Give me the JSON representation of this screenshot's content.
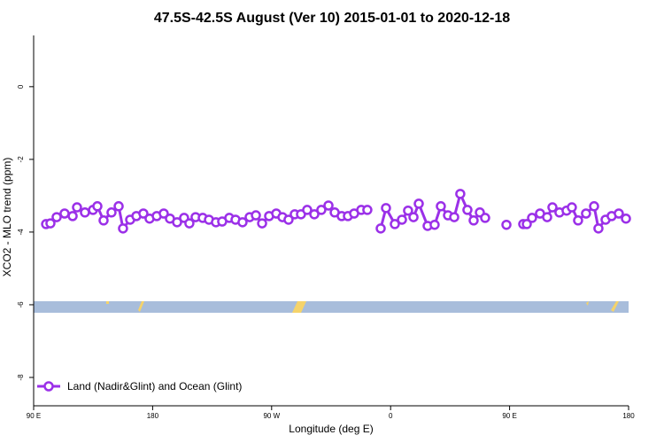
{
  "chart_data": {
    "type": "line",
    "title": "47.5S-42.5S August (Ver 10)   2015-01-01 to 2020-12-18",
    "x_label": "Longitude (deg E)",
    "y_label": "XCO2 - MLO trend (ppm)",
    "xlim": [
      90,
      540
    ],
    "ylim": [
      -8.78,
      1.41
    ],
    "xticks": [
      {
        "value": 90,
        "label": "90 E"
      },
      {
        "value": 180,
        "label": "180"
      },
      {
        "value": 270,
        "label": "90 W"
      },
      {
        "value": 360,
        "label": "0"
      },
      {
        "value": 450,
        "label": "90 E"
      },
      {
        "value": 540,
        "label": "180"
      }
    ],
    "yticks": [
      0,
      -2,
      -4,
      -6,
      -8
    ],
    "legend": "bottom-left",
    "x": [
      99.4,
      102.7,
      107.4,
      113.4,
      119.5,
      122.8,
      128.8,
      134.9,
      138.2,
      142.9,
      148.9,
      154.3,
      157.6,
      163.0,
      167.7,
      173.0,
      177.7,
      183.1,
      188.4,
      193.1,
      198.5,
      203.8,
      207.8,
      212.5,
      217.9,
      222.6,
      227.9,
      232.6,
      238.0,
      242.7,
      248.0,
      253.4,
      258.1,
      262.8,
      268.1,
      273.5,
      278.2,
      282.8,
      287.5,
      292.2,
      296.9,
      302.3,
      307.6,
      313.0,
      317.7,
      323.0,
      327.7,
      332.4,
      337.8,
      342.4,
      347.1,
      352.5,
      356.5,
      363.2,
      368.6,
      373.2,
      377.3,
      381.3,
      388.0,
      393.3,
      398.0,
      403.4,
      408.1,
      412.7,
      418.1,
      422.8,
      427.5,
      431.5,
      439.5,
      447.6,
      454.3,
      460.3,
      463.0,
      467.0,
      473.0,
      478.4,
      482.4,
      487.7,
      493.1,
      497.1,
      501.8,
      507.8,
      513.9,
      517.2,
      522.6,
      527.2,
      532.6,
      538.0
    ],
    "series": [
      {
        "name": "Land (Nadir&Glint) and Ocean (Glint)",
        "color": "#9b30e8",
        "values": [
          -3.78,
          -3.76,
          -3.59,
          -3.49,
          -3.56,
          -3.32,
          -3.46,
          -3.39,
          -3.29,
          -3.68,
          -3.46,
          -3.29,
          -3.9,
          -3.66,
          -3.56,
          -3.49,
          -3.63,
          -3.56,
          -3.49,
          -3.63,
          -3.73,
          -3.61,
          -3.76,
          -3.59,
          -3.61,
          -3.66,
          -3.73,
          -3.71,
          -3.61,
          -3.66,
          -3.73,
          -3.59,
          -3.54,
          -3.76,
          -3.56,
          -3.49,
          -3.59,
          -3.66,
          -3.51,
          -3.51,
          -3.39,
          -3.51,
          -3.39,
          -3.27,
          -3.46,
          -3.56,
          -3.56,
          -3.49,
          -3.39,
          -3.39,
          null,
          -3.9,
          -3.34,
          -3.78,
          -3.66,
          -3.41,
          -3.59,
          -3.22,
          -3.83,
          -3.8,
          -3.29,
          -3.54,
          -3.59,
          -2.95,
          -3.39,
          -3.68,
          -3.46,
          -3.61,
          null,
          -3.8,
          null,
          -3.78,
          -3.78,
          -3.61,
          -3.49,
          -3.59,
          -3.32,
          -3.46,
          -3.41,
          -3.32,
          -3.68,
          -3.49,
          -3.29,
          -3.9,
          -3.66,
          -3.56,
          -3.49,
          -3.63
        ]
      }
    ]
  }
}
